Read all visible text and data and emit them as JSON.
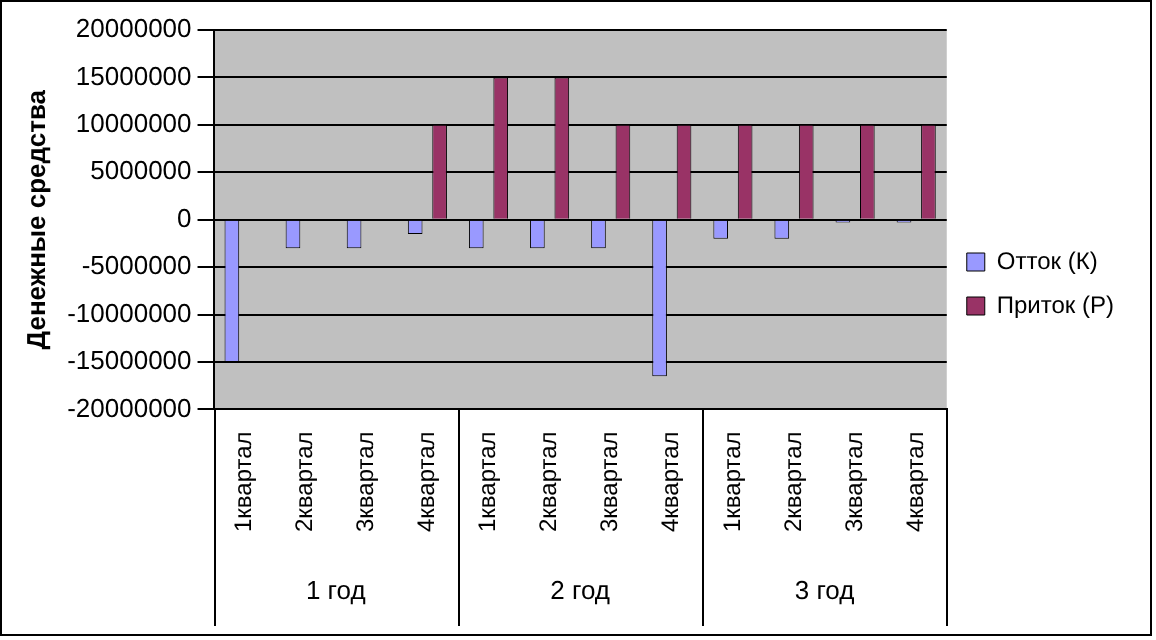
{
  "chart_data": {
    "type": "bar",
    "ylabel": "Денежные средства",
    "categories": [
      "1квартал",
      "2квартал",
      "3квартал",
      "4квартал",
      "1квартал",
      "2квартал",
      "3квартал",
      "4квартал",
      "1квартал",
      "2квартал",
      "3квартал",
      "4квартал"
    ],
    "series": [
      {
        "name": "Отток (К)",
        "color": "#9999ff",
        "values": [
          -15000000,
          -3000000,
          -3000000,
          -1500000,
          -3000000,
          -3000000,
          -3000000,
          -16500000,
          -2000000,
          -2000000,
          -300000,
          -300000
        ]
      },
      {
        "name": "Приток (Р)",
        "color": "#993366",
        "values": [
          0,
          0,
          0,
          10000000,
          15000000,
          15000000,
          10000000,
          10000000,
          10000000,
          10000000,
          10000000,
          10000000
        ]
      }
    ],
    "annotations": [
      "1 год",
      "2 год",
      "3 год"
    ],
    "ylim": [
      -20000000,
      20000000
    ],
    "yticks": [
      -20000000,
      -15000000,
      -10000000,
      -5000000,
      0,
      5000000,
      10000000,
      15000000,
      20000000
    ],
    "grid": "y",
    "legend": "right"
  }
}
